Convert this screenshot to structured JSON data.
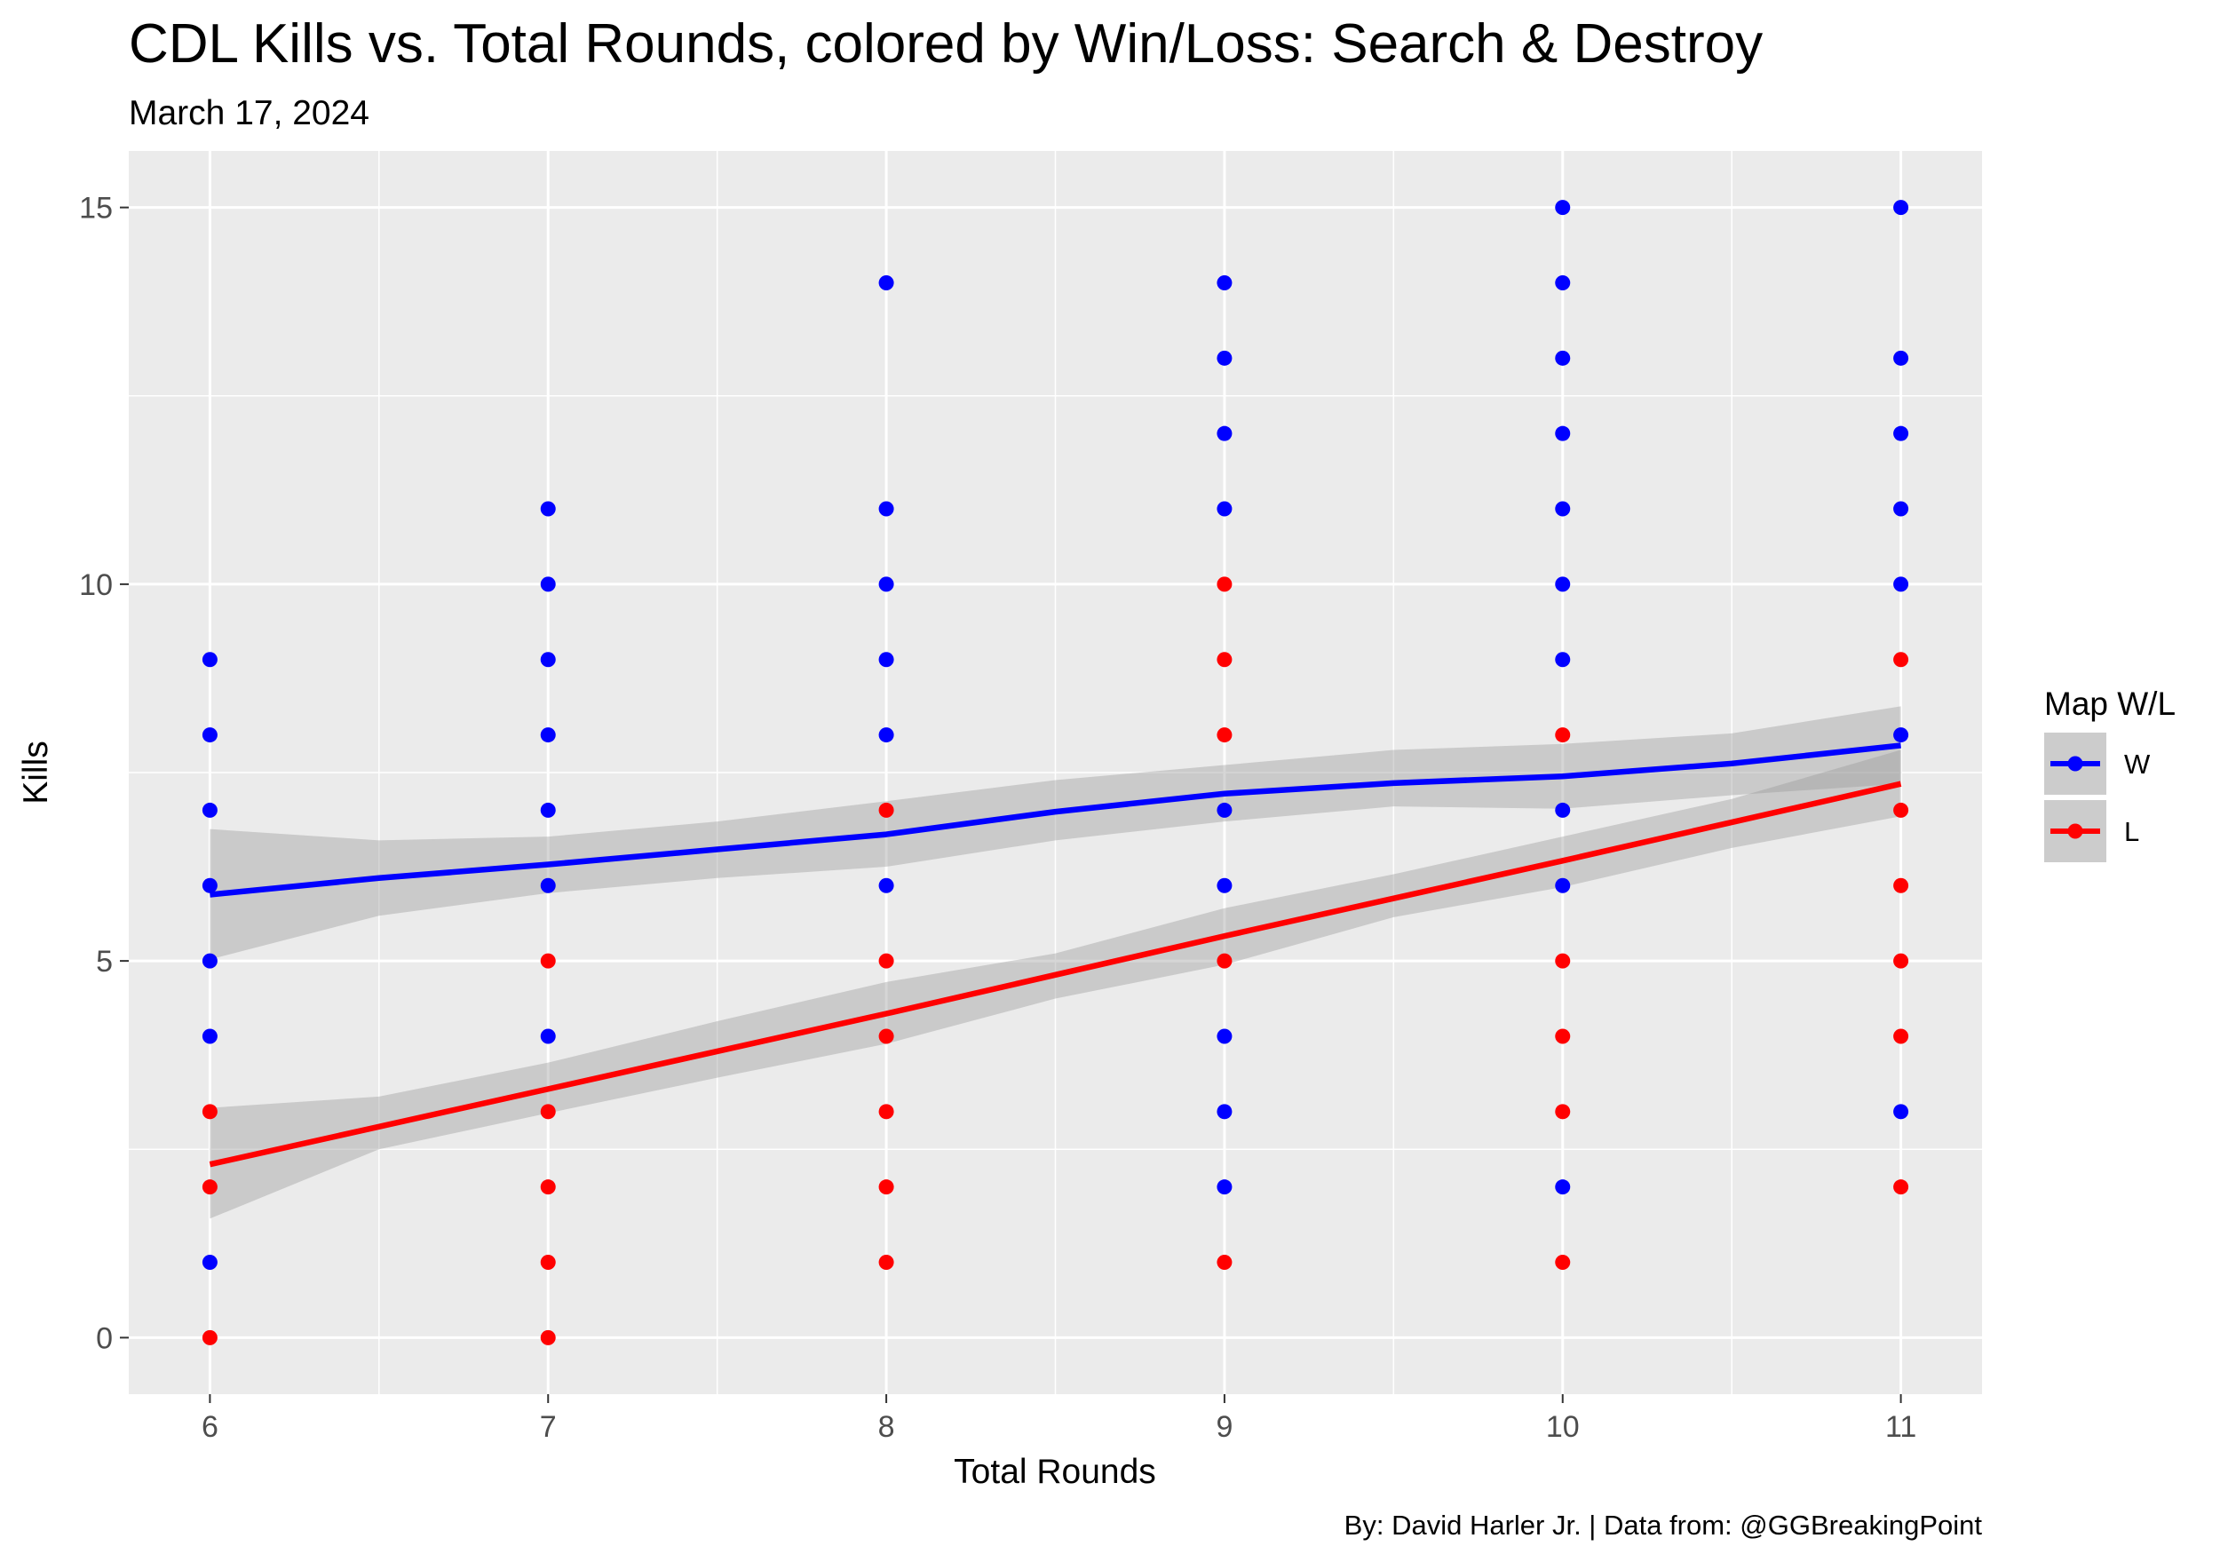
{
  "chart_data": {
    "type": "scatter",
    "title": "CDL Kills vs. Total Rounds, colored by Win/Loss: Search & Destroy",
    "subtitle": "March 17, 2024",
    "caption": "By: David Harler Jr. | Data from: @GGBreakingPoint",
    "xlabel": "Total Rounds",
    "ylabel": "Kills",
    "xlim": [
      5.76,
      11.24
    ],
    "ylim": [
      -0.75,
      15.75
    ],
    "xticks": [
      "6",
      "7",
      "8",
      "9",
      "10",
      "11"
    ],
    "yticks": [
      "0",
      "5",
      "10",
      "15"
    ],
    "grid": true,
    "legend": {
      "title": "Map W/L",
      "position": "right"
    },
    "series": [
      {
        "name": "W",
        "color": "#0000ff",
        "points": [
          [
            6,
            9
          ],
          [
            6,
            8
          ],
          [
            6,
            7
          ],
          [
            6,
            6
          ],
          [
            6,
            5
          ],
          [
            6,
            4
          ],
          [
            6,
            1
          ],
          [
            7,
            11
          ],
          [
            7,
            10
          ],
          [
            7,
            9
          ],
          [
            7,
            8
          ],
          [
            7,
            7
          ],
          [
            7,
            6
          ],
          [
            7,
            4
          ],
          [
            8,
            14
          ],
          [
            8,
            11
          ],
          [
            8,
            10
          ],
          [
            8,
            9
          ],
          [
            8,
            8
          ],
          [
            8,
            6
          ],
          [
            9,
            14
          ],
          [
            9,
            13
          ],
          [
            9,
            12
          ],
          [
            9,
            11
          ],
          [
            9,
            7
          ],
          [
            9,
            6
          ],
          [
            9,
            4
          ],
          [
            9,
            3
          ],
          [
            9,
            2
          ],
          [
            10,
            15
          ],
          [
            10,
            14
          ],
          [
            10,
            13
          ],
          [
            10,
            12
          ],
          [
            10,
            11
          ],
          [
            10,
            10
          ],
          [
            10,
            9
          ],
          [
            10,
            7
          ],
          [
            10,
            6
          ],
          [
            10,
            2
          ],
          [
            11,
            15
          ],
          [
            11,
            13
          ],
          [
            11,
            12
          ],
          [
            11,
            11
          ],
          [
            11,
            10
          ],
          [
            11,
            8
          ],
          [
            11,
            3
          ]
        ],
        "trend": [
          [
            6,
            5.88
          ],
          [
            6.5,
            6.1
          ],
          [
            7,
            6.28
          ],
          [
            7.5,
            6.48
          ],
          [
            8,
            6.68
          ],
          [
            8.5,
            6.98
          ],
          [
            9,
            7.22
          ],
          [
            9.5,
            7.36
          ],
          [
            10,
            7.45
          ],
          [
            10.5,
            7.62
          ],
          [
            11,
            7.86
          ]
        ],
        "band_upper": [
          [
            6,
            6.75
          ],
          [
            6.5,
            6.6
          ],
          [
            7,
            6.65
          ],
          [
            7.5,
            6.85
          ],
          [
            8,
            7.12
          ],
          [
            8.5,
            7.4
          ],
          [
            9,
            7.6
          ],
          [
            9.5,
            7.8
          ],
          [
            10,
            7.88
          ],
          [
            10.5,
            8.02
          ],
          [
            11,
            8.38
          ]
        ],
        "band_lower": [
          [
            6,
            5.02
          ],
          [
            6.5,
            5.6
          ],
          [
            7,
            5.9
          ],
          [
            7.5,
            6.1
          ],
          [
            8,
            6.25
          ],
          [
            8.5,
            6.6
          ],
          [
            9,
            6.85
          ],
          [
            9.5,
            7.05
          ],
          [
            10,
            7.02
          ],
          [
            10.5,
            7.2
          ],
          [
            11,
            7.35
          ]
        ]
      },
      {
        "name": "L",
        "color": "#ff0000",
        "points": [
          [
            6,
            3
          ],
          [
            6,
            2
          ],
          [
            6,
            0
          ],
          [
            7,
            5
          ],
          [
            7,
            3
          ],
          [
            7,
            2
          ],
          [
            7,
            1
          ],
          [
            7,
            0
          ],
          [
            8,
            7
          ],
          [
            8,
            5
          ],
          [
            8,
            4
          ],
          [
            8,
            3
          ],
          [
            8,
            2
          ],
          [
            8,
            1
          ],
          [
            9,
            10
          ],
          [
            9,
            9
          ],
          [
            9,
            8
          ],
          [
            9,
            5
          ],
          [
            9,
            1
          ],
          [
            10,
            8
          ],
          [
            10,
            5
          ],
          [
            10,
            4
          ],
          [
            10,
            3
          ],
          [
            10,
            1
          ],
          [
            11,
            9
          ],
          [
            11,
            7
          ],
          [
            11,
            6
          ],
          [
            11,
            5
          ],
          [
            11,
            4
          ],
          [
            11,
            2
          ]
        ],
        "trend": [
          [
            6,
            2.3
          ],
          [
            7,
            3.3
          ],
          [
            8,
            4.3
          ],
          [
            9,
            5.33
          ],
          [
            10,
            6.33
          ],
          [
            11,
            7.35
          ]
        ],
        "band_upper": [
          [
            6,
            3.05
          ],
          [
            6.5,
            3.2
          ],
          [
            7,
            3.65
          ],
          [
            7.5,
            4.2
          ],
          [
            8,
            4.72
          ],
          [
            8.5,
            5.1
          ],
          [
            9,
            5.7
          ],
          [
            9.5,
            6.15
          ],
          [
            10,
            6.65
          ],
          [
            10.5,
            7.15
          ],
          [
            11,
            7.8
          ]
        ],
        "band_lower": [
          [
            6,
            1.58
          ],
          [
            6.5,
            2.5
          ],
          [
            7,
            2.98
          ],
          [
            7.5,
            3.45
          ],
          [
            8,
            3.9
          ],
          [
            8.5,
            4.5
          ],
          [
            9,
            4.95
          ],
          [
            9.5,
            5.58
          ],
          [
            10,
            5.98
          ],
          [
            10.5,
            6.5
          ],
          [
            11,
            6.92
          ]
        ]
      }
    ]
  }
}
